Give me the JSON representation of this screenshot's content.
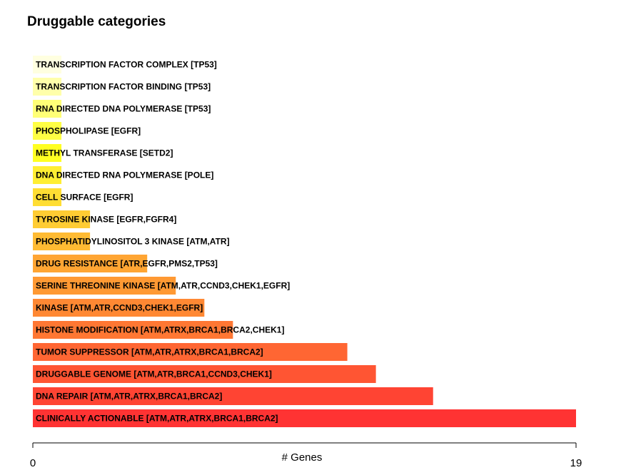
{
  "chart_data": {
    "type": "bar",
    "orientation": "horizontal",
    "title": "Druggable categories",
    "xlabel": "# Genes",
    "ylabel": "",
    "xlim": [
      0,
      19
    ],
    "x_tick_labels": [
      "0",
      "19"
    ],
    "grid": false,
    "legend": "none",
    "categories": [
      "TRANSCRIPTION FACTOR COMPLEX [TP53]",
      "TRANSCRIPTION FACTOR BINDING [TP53]",
      "RNA DIRECTED DNA POLYMERASE [TP53]",
      "PHOSPHOLIPASE [EGFR]",
      "METHYL TRANSFERASE [SETD2]",
      "DNA DIRECTED RNA POLYMERASE [POLE]",
      "CELL SURFACE [EGFR]",
      "TYROSINE KINASE [EGFR,FGFR4]",
      "PHOSPHATIDYLINOSITOL 3 KINASE [ATM,ATR]",
      "DRUG RESISTANCE [ATR,EGFR,PMS2,TP53]",
      "SERINE THREONINE KINASE [ATM,ATR,CCND3,CHEK1,EGFR]",
      "KINASE [ATM,ATR,CCND3,CHEK1,EGFR]",
      "HISTONE MODIFICATION [ATM,ATRX,BRCA1,BRCA2,CHEK1]",
      "TUMOR SUPPRESSOR [ATM,ATR,ATRX,BRCA1,BRCA2]",
      "DRUGGABLE GENOME [ATM,ATR,BRCA1,CCND3,CHEK1]",
      "DNA REPAIR [ATM,ATR,ATRX,BRCA1,BRCA2]",
      "CLINICALLY ACTIONABLE [ATM,ATR,ATRX,BRCA1,BRCA2]"
    ],
    "values": [
      1,
      1,
      1,
      1,
      1,
      1,
      1,
      2,
      2,
      4,
      5,
      6,
      7,
      11,
      12,
      14,
      19
    ],
    "colors": [
      "#FFFFE0",
      "#FFFFAA",
      "#FFFF77",
      "#FFFF44",
      "#FFFF22",
      "#FFEE33",
      "#FFDD33",
      "#FFCC33",
      "#FFBB33",
      "#FFA533",
      "#FF9933",
      "#FF8833",
      "#FF7733",
      "#FF6633",
      "#FF5533",
      "#FF4433",
      "#FF3333"
    ]
  }
}
